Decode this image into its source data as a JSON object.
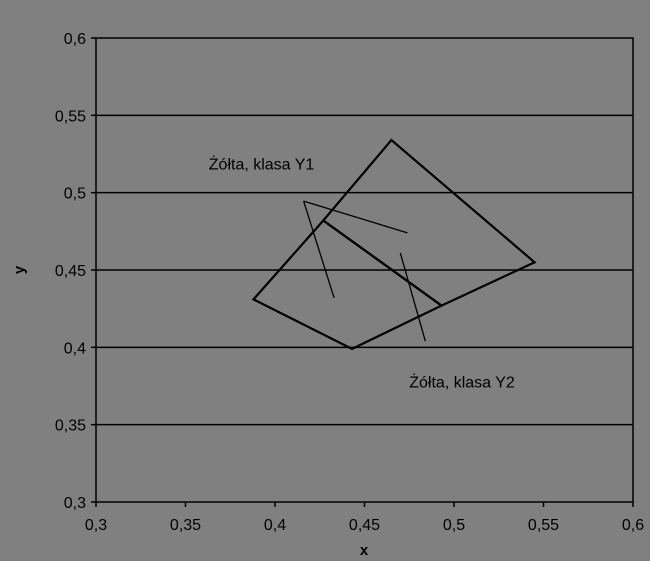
{
  "chart_data": {
    "type": "scatter",
    "title": "",
    "xlabel": "x",
    "ylabel": "y",
    "xlim": [
      0.3,
      0.6
    ],
    "ylim": [
      0.3,
      0.6
    ],
    "xticks": [
      0.3,
      0.35,
      0.4,
      0.45,
      0.5,
      0.55,
      0.6
    ],
    "yticks": [
      0.3,
      0.35,
      0.4,
      0.45,
      0.5,
      0.55,
      0.6
    ],
    "xtick_labels": [
      "0,3",
      "0,35",
      "0,4",
      "0,45",
      "0,5",
      "0,55",
      "0,6"
    ],
    "ytick_labels": [
      "0,3",
      "0,35",
      "0,4",
      "0,45",
      "0,5",
      "0,55",
      "0,6"
    ],
    "grid": "horizontal",
    "background_color": "#808080",
    "line_color": "#000000",
    "regions": [
      {
        "name": "Żółta, klasa Y1",
        "points": [
          [
            0.388,
            0.431
          ],
          [
            0.427,
            0.482
          ],
          [
            0.493,
            0.427
          ],
          [
            0.443,
            0.399
          ]
        ]
      },
      {
        "name": "Żółta, klasa Y2",
        "points": [
          [
            0.427,
            0.482
          ],
          [
            0.465,
            0.534
          ],
          [
            0.545,
            0.455
          ],
          [
            0.493,
            0.427
          ]
        ]
      }
    ],
    "annotations": [
      {
        "text": "Żółta, klasa Y1",
        "label_at": [
          0.363,
          0.515
        ],
        "arrows_from": [
          [
            0.416,
            0.4945
          ],
          [
            0.416,
            0.4945
          ]
        ],
        "arrows_to": [
          [
            0.433,
            0.432
          ],
          [
            0.474,
            0.474
          ]
        ]
      },
      {
        "text": "Żółta, klasa Y2",
        "label_at": [
          0.475,
          0.374
        ],
        "arrows_from": [
          [
            0.484,
            0.404
          ]
        ],
        "arrows_to": [
          [
            0.47,
            0.461
          ]
        ]
      }
    ]
  }
}
